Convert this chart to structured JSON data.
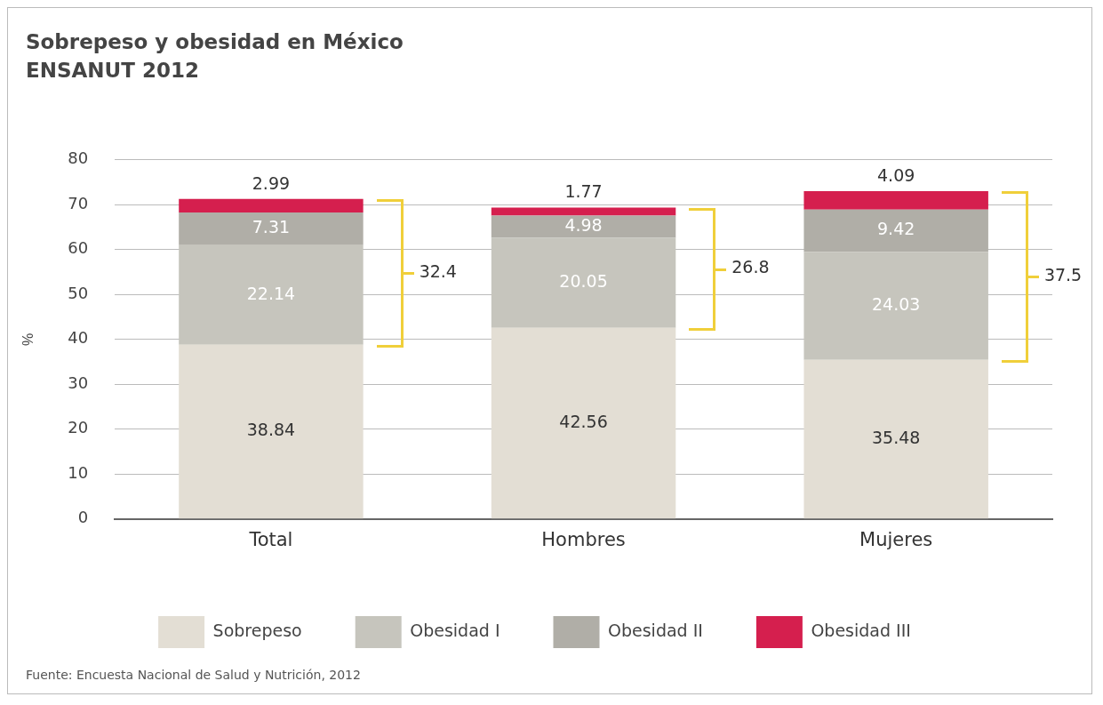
{
  "chart_data": {
    "type": "bar",
    "title": "Sobrepeso y obesidad en México",
    "subtitle": "ENSANUT 2012",
    "ylabel": "%",
    "categories": [
      "Total",
      "Hombres",
      "Mujeres"
    ],
    "stacked": true,
    "series": [
      {
        "name": "Sobrepeso",
        "color": "#e3ded4",
        "values": [
          38.84,
          42.56,
          35.48
        ]
      },
      {
        "name": "Obesidad I",
        "color": "#c6c5bd",
        "values": [
          22.14,
          20.05,
          24.03
        ]
      },
      {
        "name": "Obesidad II",
        "color": "#b0aea7",
        "values": [
          7.31,
          4.98,
          9.42
        ]
      },
      {
        "name": "Obesidad III",
        "color": "#d51f4e",
        "values": [
          2.99,
          1.77,
          4.09
        ]
      }
    ],
    "data_labels": true,
    "ylim": [
      0,
      80
    ],
    "yticks": [
      0,
      10,
      20,
      30,
      40,
      50,
      60,
      70,
      80
    ],
    "grid": "y",
    "legend": "bottom",
    "annotations": [
      "32.4",
      "26.8",
      "37.5",
      "Fuente: Encuesta Nacional de Salud y Nutrición, 2012"
    ]
  }
}
